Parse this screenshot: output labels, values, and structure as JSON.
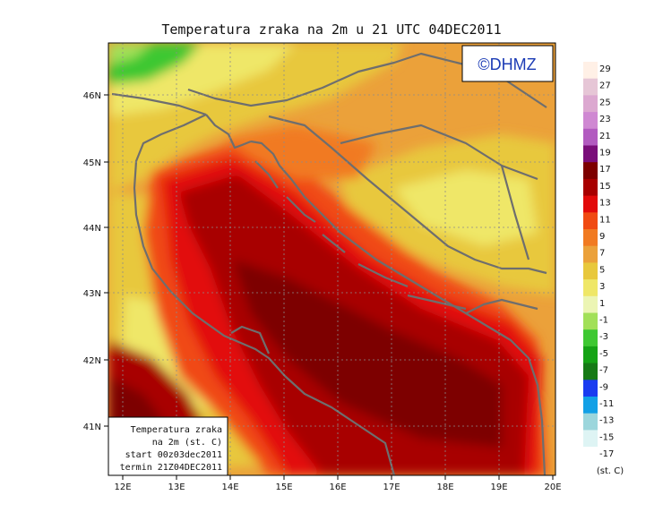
{
  "title": "Temperatura zraka na 2m u 21 UTC 04DEC2011",
  "logo": "©DHMZ",
  "info_box": {
    "line1": "Temperatura zraka",
    "line2": "na 2m (st. C)",
    "line3": "start 00z03dec2011",
    "line4": "termin 21Z04DEC2011"
  },
  "map": {
    "lon_labels": [
      "12E",
      "13E",
      "14E",
      "15E",
      "16E",
      "17E",
      "18E",
      "19E",
      "20E"
    ],
    "lat_labels": [
      "46N",
      "45N",
      "44N",
      "43N",
      "42N",
      "41N"
    ]
  },
  "legend": {
    "unit": "(st. C)",
    "levels": [
      "29",
      "27",
      "25",
      "23",
      "21",
      "19",
      "17",
      "15",
      "13",
      "11",
      "9",
      "7",
      "5",
      "3",
      "1",
      "-1",
      "-3",
      "-5",
      "-7",
      "-9",
      "-11",
      "-13",
      "-15",
      "-17"
    ],
    "colors": [
      "#fff0e6",
      "#e6c6d6",
      "#dca8d0",
      "#cf88d2",
      "#b25bc0",
      "#7a0e7a",
      "#7d0000",
      "#a80000",
      "#e20a0a",
      "#f04a12",
      "#f17a21",
      "#eba13a",
      "#e8c83c",
      "#efe768",
      "#ecf5b4",
      "#a2e058",
      "#3ec832",
      "#15a315",
      "#167a16",
      "#1a3cf0",
      "#12a0e6",
      "#9cd6dc",
      "#def4f4",
      "#ffffff"
    ]
  }
}
